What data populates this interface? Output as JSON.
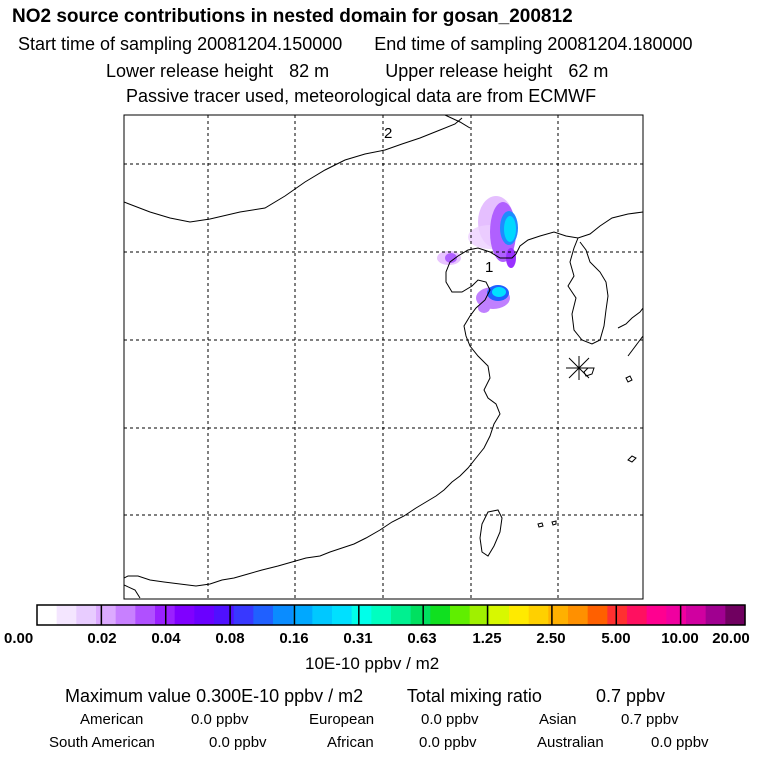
{
  "header": {
    "title": "NO2 source contributions in nested domain for gosan_200812",
    "start_label": "Start time of sampling",
    "start_value": "20081204.150000",
    "end_label": "End time of sampling",
    "end_value": "20081204.180000",
    "lower_label": "Lower release height",
    "lower_value": "82 m",
    "upper_label": "Upper release height",
    "upper_value": "62 m",
    "note": "Passive tracer used, meteorological data are from ECMWF"
  },
  "map": {
    "markers": [
      {
        "label": "1"
      },
      {
        "label": "2"
      }
    ]
  },
  "colorbar": {
    "labels": [
      "0.00",
      "0.02",
      "0.04",
      "0.08",
      "0.16",
      "0.31",
      "0.63",
      "1.25",
      "2.50",
      "5.00",
      "10.00",
      "20.00"
    ],
    "colors": [
      "#ffffff",
      "#f4e6ff",
      "#e8ccff",
      "#dcaaff",
      "#c880ff",
      "#b050ff",
      "#9a20ff",
      "#8000ff",
      "#6a00ff",
      "#5010ff",
      "#3838ff",
      "#2060ff",
      "#0a8cff",
      "#00a8ff",
      "#00c8ff",
      "#00e0ff",
      "#00ffea",
      "#00ffc0",
      "#00f090",
      "#00e060",
      "#10e020",
      "#60ee00",
      "#a0f000",
      "#d8f800",
      "#ffea00",
      "#ffd000",
      "#ffb000",
      "#ff9000",
      "#ff6000",
      "#ff3030",
      "#ff1060",
      "#ff0090",
      "#f000a0",
      "#d000a0",
      "#a00090",
      "#700060"
    ],
    "units": "10E-10 ppbv / m2"
  },
  "summary": {
    "max_label": "Maximum value",
    "max_value": "0.300E-10 ppbv / m2",
    "total_label": "Total mixing ratio",
    "total_value": "0.7 ppbv",
    "regions": [
      {
        "name": "American",
        "value": "0.0 ppbv"
      },
      {
        "name": "European",
        "value": "0.0 ppbv"
      },
      {
        "name": "Asian",
        "value": "0.7 ppbv"
      },
      {
        "name": "South American",
        "value": "0.0 ppbv"
      },
      {
        "name": "African",
        "value": "0.0 ppbv"
      },
      {
        "name": "Australian",
        "value": "0.0 ppbv"
      }
    ]
  }
}
